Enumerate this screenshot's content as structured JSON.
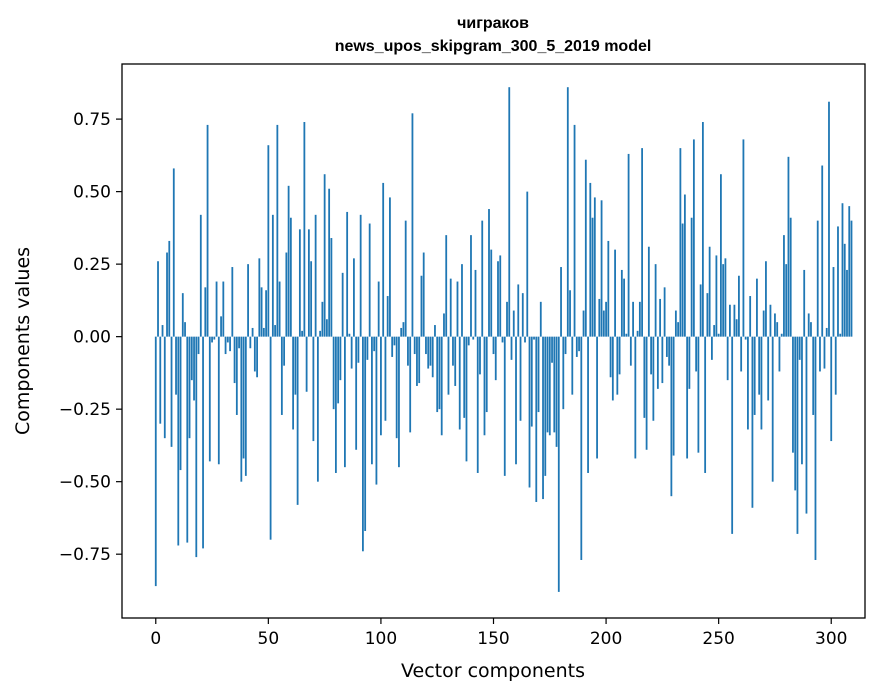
{
  "chart_data": {
    "type": "bar",
    "title": "чиграков",
    "subtitle": "news_upos_skipgram_300_5_2019 model",
    "xlabel": "Vector components",
    "ylabel": "Components values",
    "xlim": [
      -15,
      315
    ],
    "ylim": [
      -0.97,
      0.94
    ],
    "xticks": [
      0,
      50,
      100,
      150,
      200,
      250,
      300
    ],
    "xtick_labels": [
      "0",
      "50",
      "100",
      "150",
      "200",
      "250",
      "300"
    ],
    "yticks": [
      -0.75,
      -0.5,
      -0.25,
      0.0,
      0.25,
      0.5,
      0.75
    ],
    "ytick_labels": [
      "−0.75",
      "−0.50",
      "−0.25",
      "0.00",
      "0.25",
      "0.50",
      "0.75"
    ],
    "grid": false,
    "color": "#1f77b4",
    "x_start": 0,
    "values": [
      -0.86,
      0.26,
      -0.3,
      0.04,
      -0.35,
      0.29,
      0.33,
      -0.38,
      0.58,
      -0.2,
      -0.72,
      -0.46,
      0.15,
      0.05,
      -0.71,
      -0.35,
      -0.15,
      -0.22,
      -0.76,
      -0.06,
      0.42,
      -0.73,
      0.17,
      0.73,
      -0.43,
      -0.02,
      -0.01,
      0.19,
      -0.44,
      0.07,
      0.19,
      -0.06,
      -0.02,
      -0.05,
      0.24,
      -0.16,
      -0.27,
      -0.04,
      -0.5,
      -0.42,
      -0.48,
      0.25,
      -0.04,
      0.03,
      -0.12,
      -0.14,
      0.27,
      0.17,
      0.03,
      0.16,
      0.66,
      -0.7,
      0.42,
      0.04,
      0.73,
      0.19,
      -0.27,
      -0.1,
      0.29,
      0.52,
      0.41,
      -0.32,
      -0.2,
      -0.58,
      0.37,
      0.02,
      0.74,
      -0.19,
      0.37,
      0.26,
      -0.36,
      0.42,
      -0.5,
      0.02,
      0.12,
      0.56,
      0.06,
      0.51,
      0.34,
      -0.25,
      -0.47,
      -0.23,
      -0.15,
      0.22,
      -0.45,
      0.43,
      0.01,
      -0.11,
      0.27,
      -0.39,
      -0.09,
      0.42,
      -0.74,
      -0.67,
      -0.08,
      0.39,
      -0.44,
      -0.05,
      -0.51,
      0.19,
      -0.34,
      0.53,
      -0.29,
      0.14,
      0.48,
      -0.07,
      -0.03,
      -0.35,
      -0.45,
      0.03,
      0.05,
      0.4,
      -0.1,
      -0.33,
      0.77,
      -0.06,
      -0.17,
      -0.16,
      0.21,
      0.29,
      -0.06,
      -0.11,
      -0.1,
      -0.14,
      0.04,
      -0.26,
      -0.25,
      -0.34,
      0.08,
      0.35,
      -0.2,
      0.2,
      -0.1,
      -0.17,
      0.19,
      -0.32,
      0.25,
      -0.28,
      -0.43,
      -0.03,
      0.35,
      -0.01,
      0.23,
      -0.47,
      -0.13,
      0.4,
      -0.34,
      -0.26,
      0.44,
      0.3,
      -0.06,
      -0.15,
      0.26,
      0.28,
      -0.02,
      -0.48,
      0.12,
      0.86,
      -0.08,
      0.09,
      -0.44,
      0.18,
      -0.29,
      0.15,
      -0.02,
      0.5,
      -0.52,
      -0.31,
      -0.01,
      -0.57,
      -0.26,
      0.12,
      -0.56,
      -0.48,
      -0.33,
      -0.34,
      -0.09,
      -0.33,
      -0.38,
      -0.88,
      0.24,
      -0.25,
      -0.06,
      0.86,
      0.16,
      -0.2,
      0.73,
      -0.07,
      -0.05,
      -0.77,
      0.09,
      0.61,
      -0.47,
      0.53,
      0.41,
      0.48,
      -0.42,
      0.13,
      0.47,
      0.09,
      0.12,
      0.33,
      -0.14,
      -0.22,
      0.3,
      -0.2,
      -0.13,
      0.23,
      0.2,
      0.01,
      0.63,
      -0.1,
      0.12,
      -0.42,
      0.02,
      0.12,
      0.65,
      -0.28,
      -0.39,
      0.31,
      -0.13,
      -0.29,
      0.25,
      -0.18,
      0.13,
      -0.16,
      0.17,
      -0.07,
      -0.1,
      -0.55,
      -0.41,
      0.09,
      0.05,
      0.65,
      0.39,
      0.49,
      -0.42,
      -0.18,
      0.41,
      0.68,
      -0.12,
      -0.4,
      0.18,
      0.74,
      -0.47,
      0.15,
      0.31,
      -0.08,
      0.04,
      0.28,
      0.01,
      0.56,
      0.25,
      0.27,
      -0.15,
      0.11,
      -0.68,
      0.11,
      0.06,
      0.21,
      -0.12,
      0.68,
      -0.01,
      -0.32,
      0.14,
      -0.59,
      -0.27,
      0.2,
      -0.2,
      -0.32,
      0.09,
      0.26,
      -0.22,
      0.11,
      -0.5,
      0.08,
      0.05,
      -0.12,
      0.01,
      0.35,
      0.25,
      0.62,
      0.41,
      -0.4,
      -0.53,
      -0.68,
      -0.08,
      -0.44,
      0.23,
      -0.61,
      0.08,
      0.05,
      -0.27,
      -0.77,
      0.4,
      -0.12,
      0.59,
      -0.11,
      0.03,
      0.81,
      -0.36,
      0.24,
      -0.2,
      0.38,
      0.01,
      0.46,
      0.32,
      0.23,
      0.45,
      0.4
    ]
  }
}
